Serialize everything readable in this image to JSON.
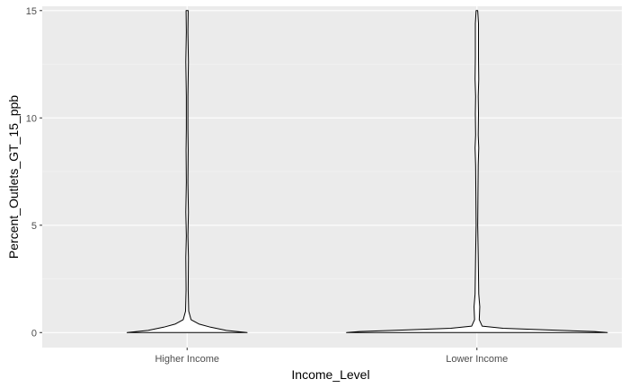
{
  "chart_data": {
    "type": "violin",
    "xlabel": "Income_Level",
    "ylabel": "Percent_Outlets_GT_15_ppb",
    "categories": [
      "Higher Income",
      "Lower Income"
    ],
    "ylim": [
      -0.7,
      15.2
    ],
    "yticks": [
      0,
      5,
      10,
      15
    ],
    "grid": true,
    "legend": "none",
    "colors": {
      "panel": "#ebebeb",
      "grid_major": "#ffffff",
      "grid_minor": "#f5f5f5",
      "outline": "#000000",
      "fill": "#ffffff"
    },
    "series": [
      {
        "category": "Higher Income",
        "y_min": 0,
        "y_max": 15,
        "density": [
          {
            "y": 0.0,
            "w": 0.46
          },
          {
            "y": 0.1,
            "w": 0.3
          },
          {
            "y": 0.25,
            "w": 0.18
          },
          {
            "y": 0.4,
            "w": 0.09
          },
          {
            "y": 0.6,
            "w": 0.03
          },
          {
            "y": 1.0,
            "w": 0.012
          },
          {
            "y": 2.0,
            "w": 0.008
          },
          {
            "y": 3.5,
            "w": 0.01
          },
          {
            "y": 4.5,
            "w": 0.006
          },
          {
            "y": 5.6,
            "w": 0.01
          },
          {
            "y": 7.0,
            "w": 0.006
          },
          {
            "y": 8.5,
            "w": 0.008
          },
          {
            "y": 9.5,
            "w": 0.006
          },
          {
            "y": 11.0,
            "w": 0.006
          },
          {
            "y": 12.6,
            "w": 0.01
          },
          {
            "y": 14.0,
            "w": 0.006
          },
          {
            "y": 15.0,
            "w": 0.008
          }
        ]
      },
      {
        "category": "Lower Income",
        "y_min": 0,
        "y_max": 15,
        "density": [
          {
            "y": 0.0,
            "w": 1.0
          },
          {
            "y": 0.05,
            "w": 0.9
          },
          {
            "y": 0.12,
            "w": 0.55
          },
          {
            "y": 0.2,
            "w": 0.2
          },
          {
            "y": 0.3,
            "w": 0.04
          },
          {
            "y": 0.6,
            "w": 0.018
          },
          {
            "y": 1.2,
            "w": 0.022
          },
          {
            "y": 1.8,
            "w": 0.014
          },
          {
            "y": 3.6,
            "w": 0.01
          },
          {
            "y": 5.0,
            "w": 0.006
          },
          {
            "y": 6.5,
            "w": 0.008
          },
          {
            "y": 7.8,
            "w": 0.01
          },
          {
            "y": 8.6,
            "w": 0.014
          },
          {
            "y": 9.2,
            "w": 0.01
          },
          {
            "y": 10.2,
            "w": 0.012
          },
          {
            "y": 11.0,
            "w": 0.01
          },
          {
            "y": 11.8,
            "w": 0.014
          },
          {
            "y": 12.8,
            "w": 0.012
          },
          {
            "y": 14.4,
            "w": 0.012
          },
          {
            "y": 15.0,
            "w": 0.006
          }
        ]
      }
    ]
  }
}
